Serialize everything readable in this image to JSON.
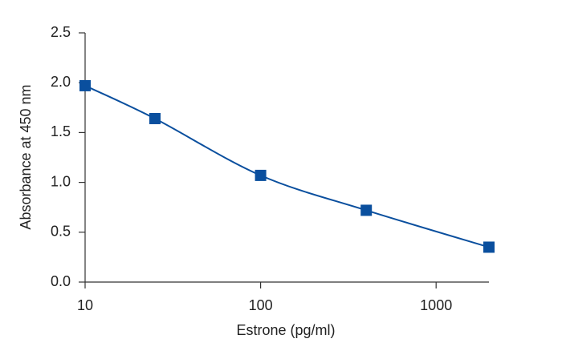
{
  "chart_data": {
    "type": "line",
    "x_label": "Estrone (pg/ml)",
    "y_label": "Absorbance at 450 nm",
    "x": [
      10,
      25,
      100,
      400,
      2000
    ],
    "series": [
      {
        "color": "#0a4f9e",
        "values": [
          1.97,
          1.64,
          1.07,
          0.72,
          0.35
        ]
      }
    ],
    "x_log": true,
    "xlim": [
      10,
      2000
    ],
    "xticks": [
      10,
      100,
      1000
    ],
    "ylim": [
      0,
      2.5
    ],
    "yticks": [
      {
        "value": 0,
        "label": "0.0"
      },
      {
        "value": 0.5,
        "label": "0.5"
      },
      {
        "value": 1,
        "label": "1.0"
      },
      {
        "value": 1.5,
        "label": "1.5"
      },
      {
        "value": 2,
        "label": "2.0"
      },
      {
        "value": 2.5,
        "label": "2.5"
      }
    ],
    "grid": false
  }
}
